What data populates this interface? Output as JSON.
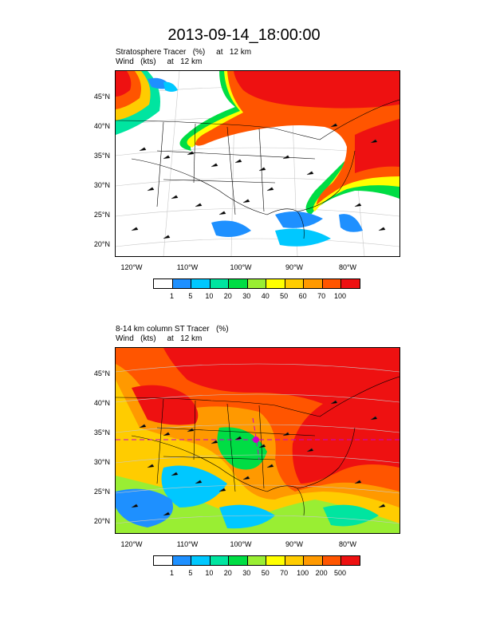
{
  "title": "2013-09-14_18:00:00",
  "panels": [
    {
      "subtitle1": "Stratosphere Tracer   (%)     at   12 km",
      "subtitle2": "Wind   (kts)     at   12 km",
      "lat_labels": [
        "45°N",
        "40°N",
        "35°N",
        "30°N",
        "25°N",
        "20°N"
      ],
      "lon_labels": [
        "120°W",
        "110°W",
        "100°W",
        "90°W",
        "80°W"
      ],
      "colorbar_labels": [
        "1",
        "5",
        "10",
        "20",
        "30",
        "40",
        "50",
        "60",
        "70",
        "100"
      ]
    },
    {
      "subtitle1": "8-14 km column ST Tracer   (%)",
      "subtitle2": "Wind   (kts)     at   12 km",
      "lat_labels": [
        "45°N",
        "40°N",
        "35°N",
        "30°N",
        "25°N",
        "20°N"
      ],
      "lon_labels": [
        "120°W",
        "110°W",
        "100°W",
        "90°W",
        "80°W"
      ],
      "colorbar_labels": [
        "1",
        "5",
        "10",
        "20",
        "30",
        "50",
        "70",
        "100",
        "200",
        "500"
      ]
    }
  ],
  "colorbar_colors": [
    "#ffffff",
    "#1e90ff",
    "#00c8ff",
    "#00e5a0",
    "#00dd44",
    "#99ee33",
    "#ffff00",
    "#ffcc00",
    "#ff9900",
    "#ff5500",
    "#ee1111"
  ]
}
